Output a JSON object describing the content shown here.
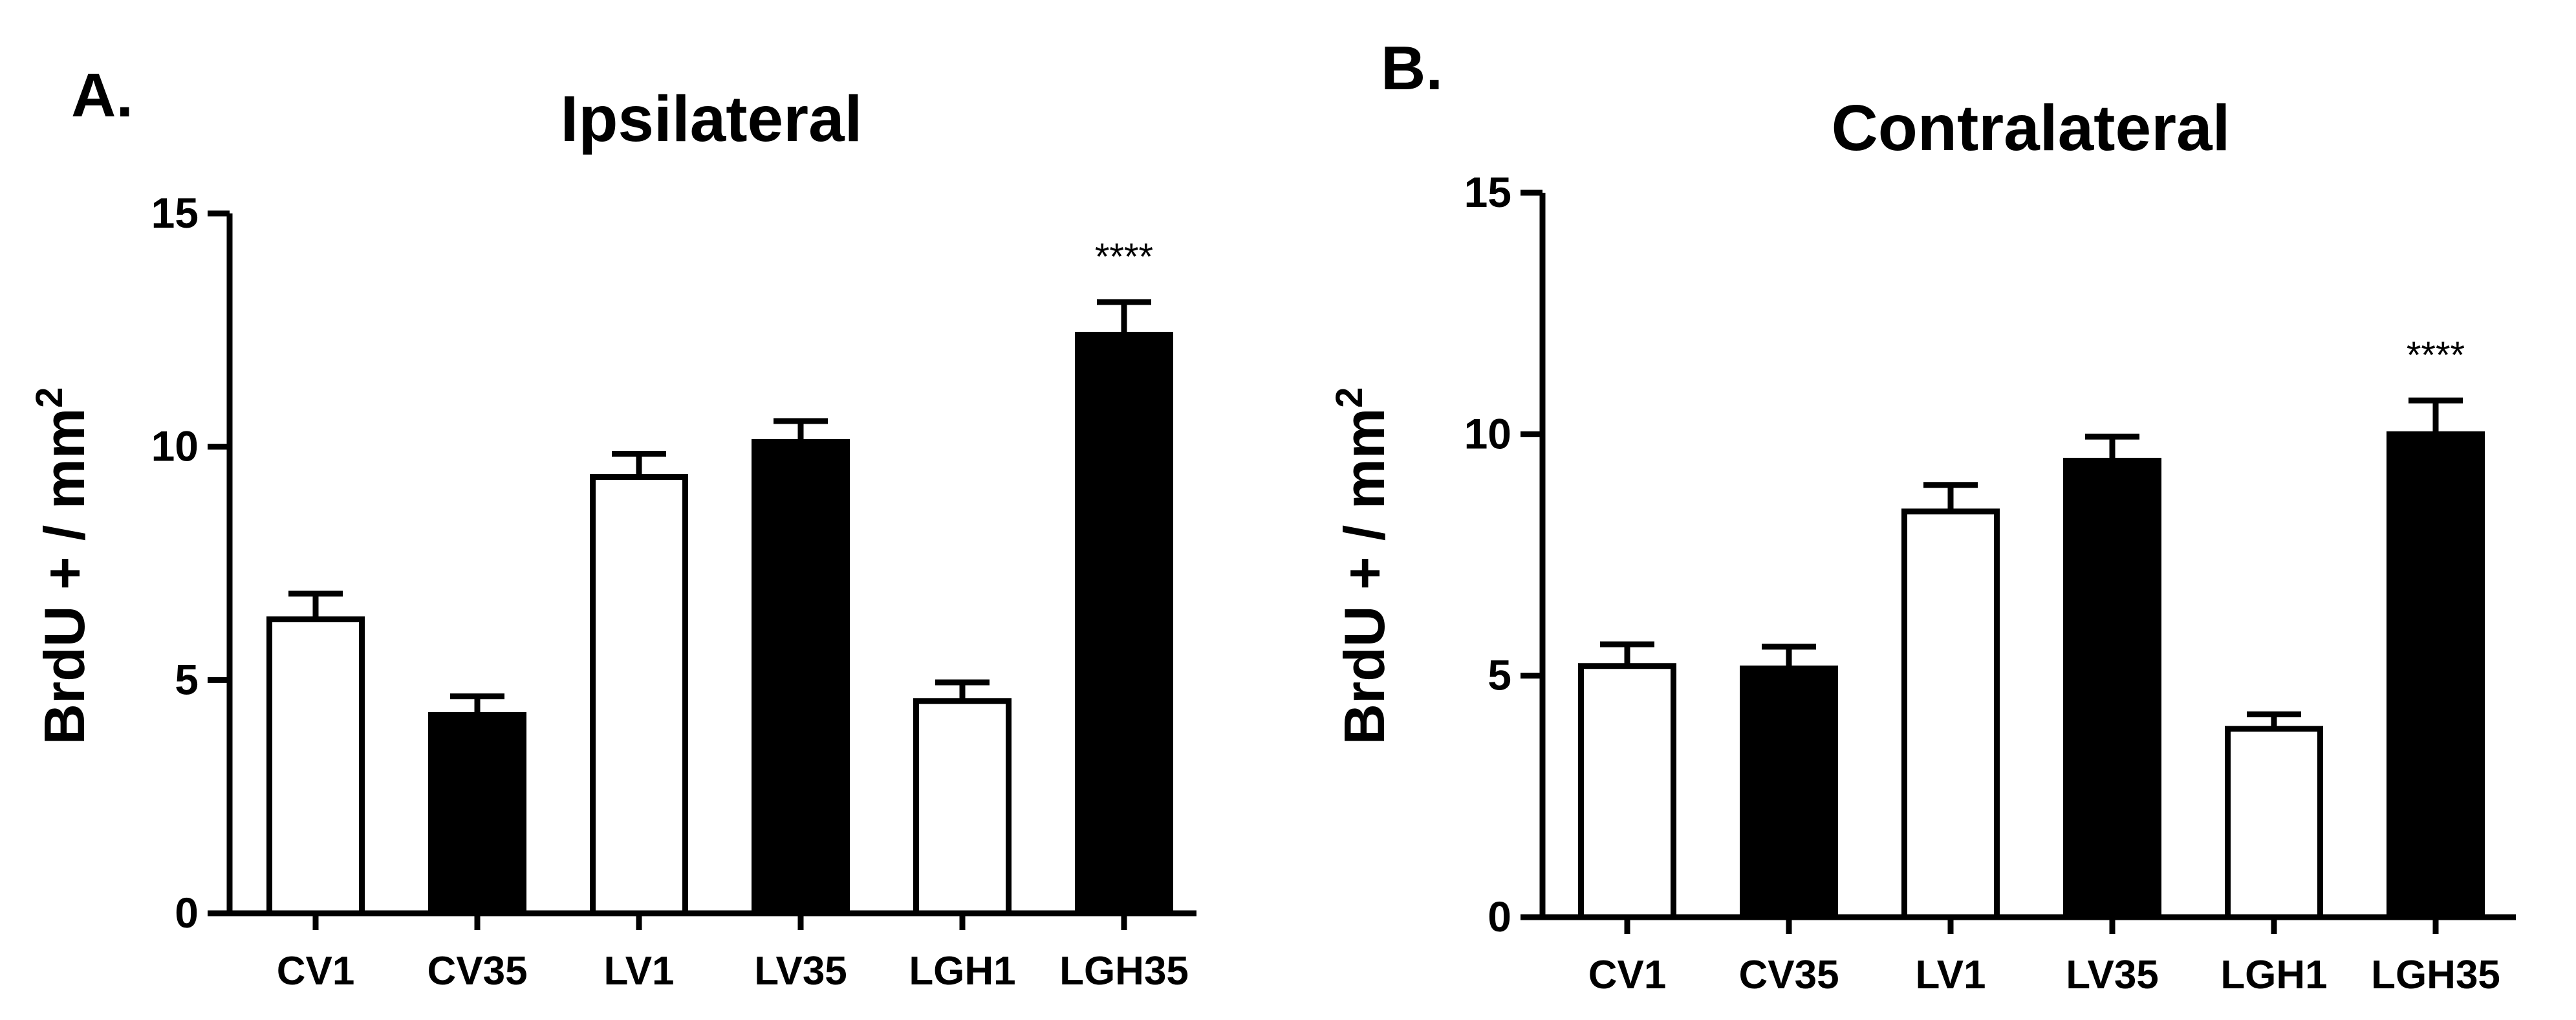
{
  "panels": [
    {
      "letter": "A.",
      "chart_data": {
        "type": "bar",
        "title": "Ipsilateral",
        "xlabel": "",
        "ylabel": "BrdU + / mm",
        "ylabel_superscript": "2",
        "categories": [
          "CV1",
          "CV35",
          "LV1",
          "LV35",
          "LGH1",
          "LGH35"
        ],
        "values": [
          6.3,
          4.25,
          9.35,
          10.1,
          4.55,
          12.4
        ],
        "errors": [
          0.55,
          0.4,
          0.5,
          0.45,
          0.4,
          0.7
        ],
        "fills": [
          "#ffffff",
          "#000000",
          "#ffffff",
          "#000000",
          "#ffffff",
          "#000000"
        ],
        "ylim": [
          0,
          15
        ],
        "yticks": [
          0,
          5,
          10,
          15
        ],
        "annotations": [
          {
            "category": "LGH35",
            "text": "****"
          }
        ]
      }
    },
    {
      "letter": "B.",
      "chart_data": {
        "type": "bar",
        "title": "Contralateral",
        "xlabel": "",
        "ylabel": "BrdU + / mm",
        "ylabel_superscript": "2",
        "categories": [
          "CV1",
          "CV35",
          "LV1",
          "LV35",
          "LGH1",
          "LGH35"
        ],
        "values": [
          5.2,
          5.15,
          8.4,
          9.45,
          3.9,
          10.0
        ],
        "errors": [
          0.45,
          0.45,
          0.55,
          0.5,
          0.3,
          0.7
        ],
        "fills": [
          "#ffffff",
          "#000000",
          "#ffffff",
          "#000000",
          "#ffffff",
          "#000000"
        ],
        "ylim": [
          0,
          15
        ],
        "yticks": [
          0,
          5,
          10,
          15
        ],
        "annotations": [
          {
            "category": "LGH35",
            "text": "****"
          }
        ]
      }
    }
  ]
}
